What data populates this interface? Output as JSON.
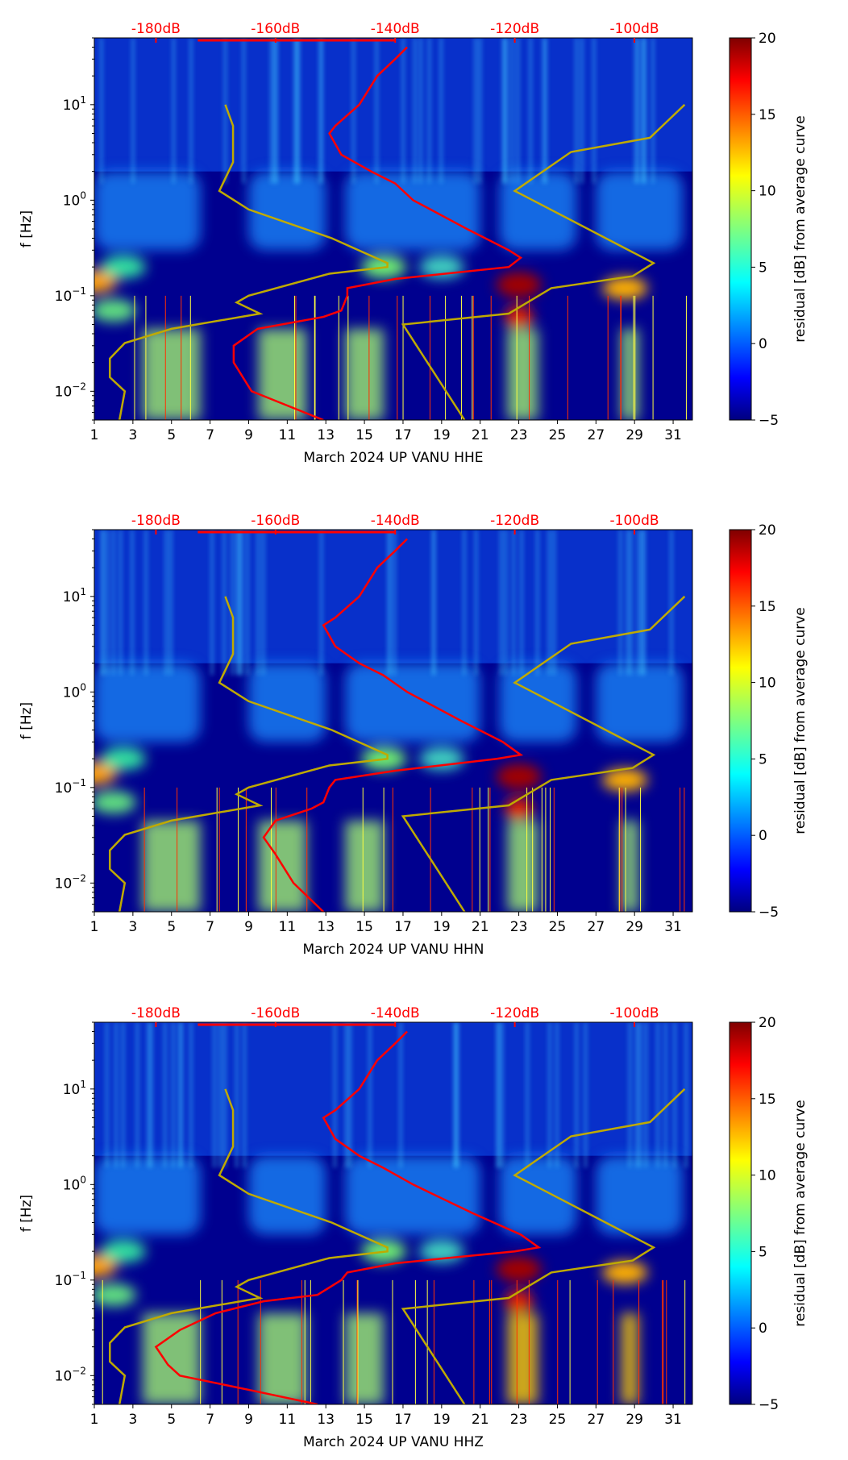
{
  "chart_data": [
    {
      "type": "heatmap",
      "xlabel": "March 2024 UP VANU  HHE",
      "ylabel": "f [Hz]",
      "colorbar_label": "residual [dB] from average curve",
      "red_curve_db": [
        [
          40,
          -138
        ],
        [
          30,
          -140
        ],
        [
          20,
          -143
        ],
        [
          10,
          -146
        ],
        [
          6,
          -150
        ],
        [
          5,
          -151
        ],
        [
          3,
          -149
        ],
        [
          2,
          -144
        ],
        [
          1.5,
          -140
        ],
        [
          1,
          -137
        ],
        [
          0.5,
          -128
        ],
        [
          0.3,
          -121
        ],
        [
          0.25,
          -119
        ],
        [
          0.2,
          -121
        ],
        [
          0.15,
          -140
        ],
        [
          0.12,
          -148
        ],
        [
          0.1,
          -148
        ],
        [
          0.07,
          -149
        ],
        [
          0.06,
          -152
        ],
        [
          0.045,
          -163
        ],
        [
          0.03,
          -167
        ],
        [
          0.02,
          -167
        ],
        [
          0.01,
          -164
        ],
        [
          0.005,
          -152
        ]
      ]
    },
    {
      "type": "heatmap",
      "xlabel": "March 2024 UP VANU  HHN",
      "ylabel": "f [Hz]",
      "colorbar_label": "residual [dB] from average curve",
      "red_curve_db": [
        [
          40,
          -138
        ],
        [
          30,
          -140
        ],
        [
          20,
          -143
        ],
        [
          10,
          -146
        ],
        [
          6,
          -150
        ],
        [
          5,
          -152
        ],
        [
          3,
          -150
        ],
        [
          2,
          -146
        ],
        [
          1.5,
          -142
        ],
        [
          1,
          -138
        ],
        [
          0.5,
          -129
        ],
        [
          0.3,
          -122
        ],
        [
          0.22,
          -119
        ],
        [
          0.2,
          -123
        ],
        [
          0.15,
          -140
        ],
        [
          0.12,
          -150
        ],
        [
          0.1,
          -151
        ],
        [
          0.07,
          -152
        ],
        [
          0.06,
          -154
        ],
        [
          0.045,
          -160
        ],
        [
          0.03,
          -162
        ],
        [
          0.02,
          -160
        ],
        [
          0.01,
          -157
        ],
        [
          0.005,
          -152
        ]
      ]
    },
    {
      "type": "heatmap",
      "xlabel": "March 2024 UP VANU  HHZ",
      "ylabel": "f [Hz]",
      "colorbar_label": "residual [dB] from average curve",
      "red_curve_db": [
        [
          40,
          -138
        ],
        [
          30,
          -140
        ],
        [
          20,
          -143
        ],
        [
          10,
          -146
        ],
        [
          6,
          -150
        ],
        [
          5,
          -152
        ],
        [
          3,
          -150
        ],
        [
          2,
          -146
        ],
        [
          1.5,
          -142
        ],
        [
          1,
          -137
        ],
        [
          0.5,
          -127
        ],
        [
          0.3,
          -119
        ],
        [
          0.22,
          -116
        ],
        [
          0.2,
          -120
        ],
        [
          0.15,
          -140
        ],
        [
          0.12,
          -148
        ],
        [
          0.1,
          -149
        ],
        [
          0.07,
          -153
        ],
        [
          0.06,
          -162
        ],
        [
          0.045,
          -170
        ],
        [
          0.03,
          -176
        ],
        [
          0.02,
          -180
        ],
        [
          0.013,
          -178
        ],
        [
          0.01,
          -176
        ],
        [
          0.007,
          -164
        ],
        [
          0.005,
          -153
        ]
      ]
    }
  ],
  "shared": {
    "x_ticks": [
      "1",
      "3",
      "5",
      "7",
      "9",
      "11",
      "13",
      "15",
      "17",
      "19",
      "21",
      "23",
      "25",
      "27",
      "29",
      "31"
    ],
    "x_range": [
      1,
      32
    ],
    "y_range_hz": [
      0.005,
      50
    ],
    "y_ticks": [
      {
        "v": 0.01,
        "b": "10",
        "e": "−2"
      },
      {
        "v": 0.1,
        "b": "10",
        "e": "−1"
      },
      {
        "v": 1,
        "b": "10",
        "e": "0"
      },
      {
        "v": 10,
        "b": "10",
        "e": "1"
      }
    ],
    "top_axis_db_range": [
      -190.3,
      -90.3
    ],
    "top_ticks": [
      {
        "v": -180,
        "label": "-180dB"
      },
      {
        "v": -160,
        "label": "-160dB"
      },
      {
        "v": -140,
        "label": "-140dB"
      },
      {
        "v": -120,
        "label": "-120dB"
      },
      {
        "v": -100,
        "label": "-100dB"
      }
    ],
    "colorbar_range": [
      -5,
      20
    ],
    "colorbar_ticks": [
      "20",
      "15",
      "10",
      "5",
      "0",
      "−5"
    ],
    "nlnm_db": [
      [
        10,
        -168.4
      ],
      [
        6,
        -167.1
      ],
      [
        2.5,
        -167.1
      ],
      [
        1.25,
        -169.4
      ],
      [
        0.8,
        -164.5
      ],
      [
        0.4,
        -150.6
      ],
      [
        0.22,
        -141.3
      ],
      [
        0.2,
        -141.3
      ],
      [
        0.17,
        -151
      ],
      [
        0.1,
        -164.5
      ],
      [
        0.085,
        -166.5
      ],
      [
        0.065,
        -162.6
      ],
      [
        0.045,
        -177.4
      ],
      [
        0.032,
        -185.2
      ],
      [
        0.022,
        -187.7
      ],
      [
        0.014,
        -187.7
      ],
      [
        0.01,
        -185.2
      ],
      [
        0.005,
        -186.1
      ]
    ],
    "nhnm_db": [
      [
        10,
        -91.6
      ],
      [
        4.5,
        -97.4
      ],
      [
        3.2,
        -110.6
      ],
      [
        1.25,
        -120
      ],
      [
        0.22,
        -96.8
      ],
      [
        0.16,
        -100.3
      ],
      [
        0.12,
        -113.9
      ],
      [
        0.065,
        -121
      ],
      [
        0.05,
        -138.7
      ],
      [
        0.005,
        -128.4
      ]
    ],
    "colors": {
      "curve": "#ff0000",
      "model": "#bfaa00",
      "top_label": "#ff0000"
    }
  }
}
